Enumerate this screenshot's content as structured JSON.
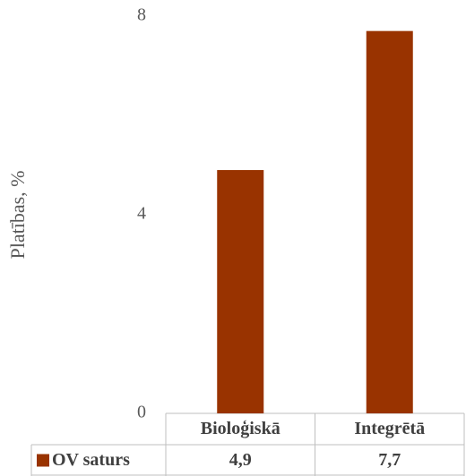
{
  "chart_data": {
    "type": "bar",
    "y_label": "Platības, %",
    "categories": [
      "Bioloģiskā",
      "Integrētā"
    ],
    "series": [
      {
        "name": "OV saturs",
        "color": "#993300",
        "values": [
          4.9,
          7.7
        ],
        "value_labels": [
          "4,9",
          "7,7"
        ]
      }
    ],
    "ylim": [
      0,
      8
    ],
    "yticks": [
      0,
      4,
      8
    ],
    "grid": false,
    "data_table": true
  }
}
